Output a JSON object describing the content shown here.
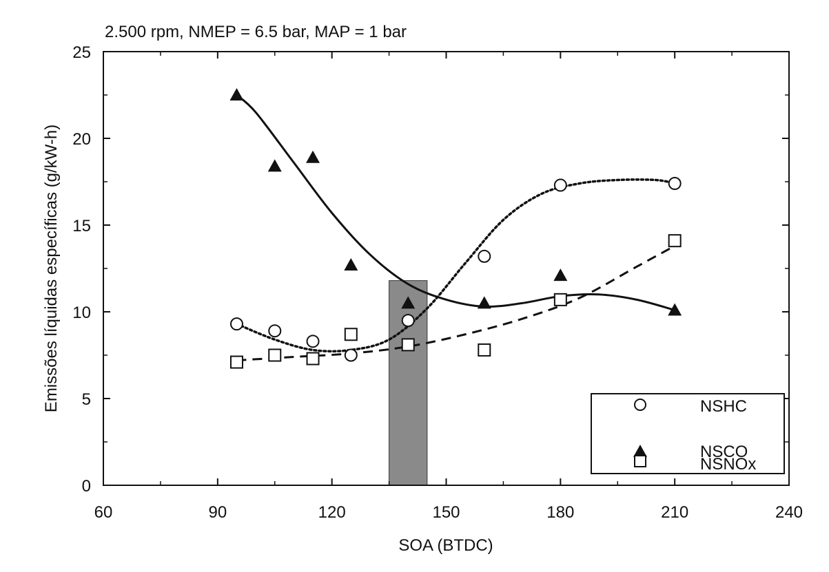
{
  "chart_data": {
    "type": "scatter",
    "subtitle": "2.500 rpm, NMEP = 6.5 bar, MAP = 1 bar",
    "xlabel": "SOA (BTDC)",
    "ylabel": "Emissões líquidas específicas (g/kW-h)",
    "xlim": [
      60,
      240
    ],
    "ylim": [
      0,
      25
    ],
    "xticks": [
      60,
      90,
      120,
      150,
      180,
      210,
      240
    ],
    "yticks": [
      0,
      5,
      10,
      15,
      20,
      25
    ],
    "legend_position": "bottom-right",
    "series": [
      {
        "name": "NSHC",
        "marker": "open-circle",
        "line_style": "dotted",
        "x": [
          95,
          105,
          115,
          125,
          140,
          160,
          180,
          210
        ],
        "y": [
          9.3,
          8.9,
          8.3,
          7.5,
          9.5,
          13.2,
          17.3,
          17.4
        ],
        "fit": [
          [
            95,
            9.3
          ],
          [
            105,
            8.4
          ],
          [
            115,
            7.8
          ],
          [
            125,
            7.8
          ],
          [
            135,
            8.4
          ],
          [
            145,
            10.2
          ],
          [
            155,
            12.8
          ],
          [
            165,
            15.3
          ],
          [
            175,
            16.8
          ],
          [
            185,
            17.4
          ],
          [
            195,
            17.6
          ],
          [
            205,
            17.6
          ],
          [
            210,
            17.4
          ]
        ]
      },
      {
        "name": "NSCO",
        "marker": "filled-triangle",
        "line_style": "solid",
        "x": [
          95,
          105,
          115,
          125,
          140,
          160,
          180,
          210
        ],
        "y": [
          22.5,
          18.4,
          18.9,
          12.7,
          10.5,
          10.5,
          12.1,
          10.1
        ],
        "fit": [
          [
            95,
            22.5
          ],
          [
            100,
            21.5
          ],
          [
            110,
            18.6
          ],
          [
            120,
            15.7
          ],
          [
            130,
            13.3
          ],
          [
            140,
            11.6
          ],
          [
            150,
            10.7
          ],
          [
            160,
            10.3
          ],
          [
            170,
            10.5
          ],
          [
            180,
            10.9
          ],
          [
            190,
            11.0
          ],
          [
            200,
            10.7
          ],
          [
            210,
            10.1
          ]
        ]
      },
      {
        "name": "NSNOx",
        "marker": "open-square",
        "line_style": "dashed",
        "x": [
          95,
          105,
          115,
          125,
          140,
          160,
          180,
          210
        ],
        "y": [
          7.1,
          7.5,
          7.3,
          8.7,
          8.1,
          7.8,
          10.7,
          14.1
        ],
        "fit": [
          [
            95,
            7.2
          ],
          [
            110,
            7.4
          ],
          [
            125,
            7.6
          ],
          [
            140,
            8.0
          ],
          [
            155,
            8.7
          ],
          [
            170,
            9.6
          ],
          [
            185,
            10.8
          ],
          [
            200,
            12.6
          ],
          [
            210,
            13.8
          ]
        ]
      }
    ],
    "shaded_band": {
      "x_from": 135,
      "x_to": 145,
      "y_top": 11.8,
      "color": "#8a8a8a"
    }
  }
}
